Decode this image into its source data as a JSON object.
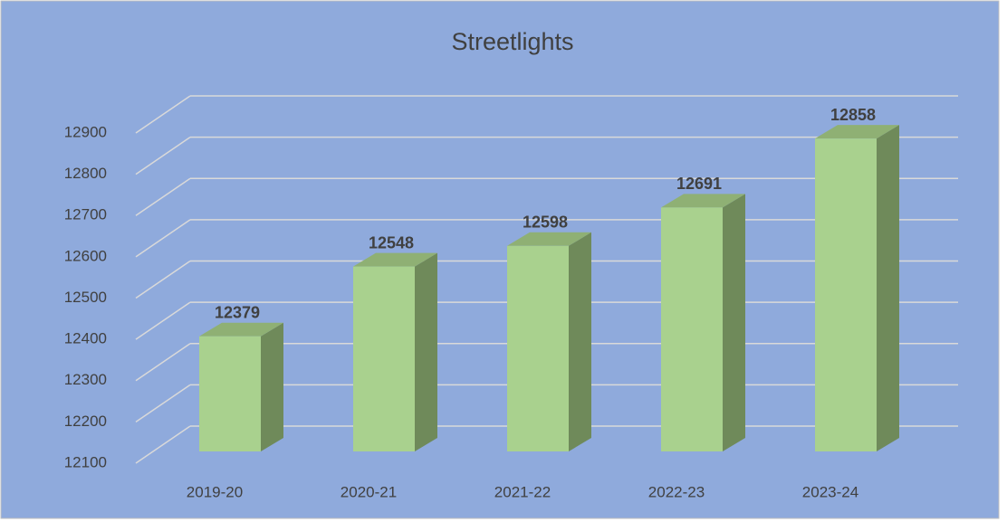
{
  "chart_data": {
    "type": "bar3d",
    "title": "Streetlights",
    "categories": [
      "2019-20",
      "2020-21",
      "2021-22",
      "2022-23",
      "2023-24"
    ],
    "values": [
      12379,
      12548,
      12598,
      12691,
      12858
    ],
    "color": "#a9d18e",
    "ylim": [
      12100,
      12900
    ],
    "yticks": [
      12100,
      12200,
      12300,
      12400,
      12500,
      12600,
      12700,
      12800,
      12900
    ],
    "grid": true
  }
}
